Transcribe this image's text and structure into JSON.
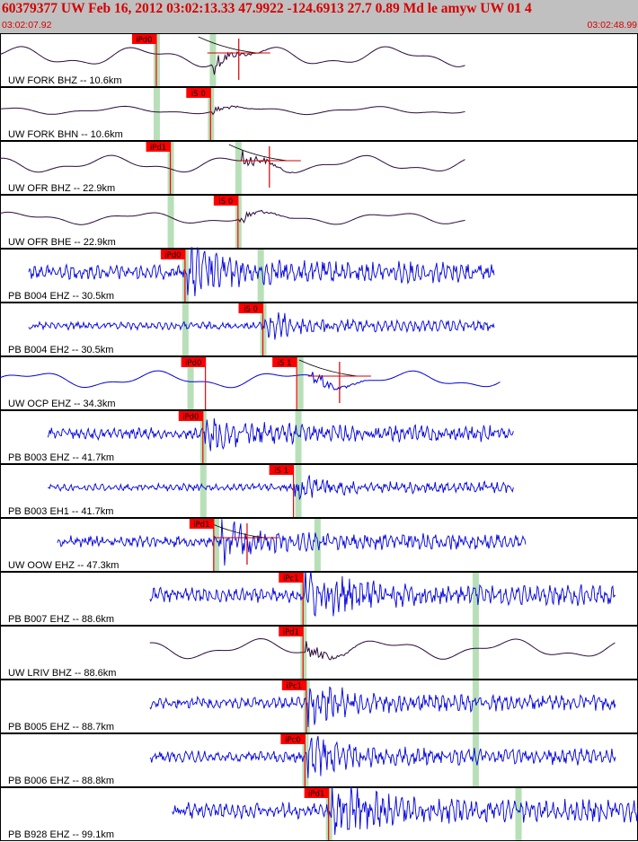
{
  "header": {
    "title": "60379377 UW Feb 16, 2012 03:02:13.33   47.9922 -124.6913 27.7 0.89 Md le amyw UW 01   4",
    "start_time": "03:02:07.92",
    "end_time": "03:02:48.99"
  },
  "colors": {
    "panel_border": "#000000",
    "phase_flag": "#ff0000",
    "pick_band": "#b8e0b8",
    "broadband_trace": "#2a0a3a",
    "shortperiod_trace": "#0000dd",
    "fit_line": "#d00000"
  },
  "traces": [
    {
      "label": "UW FORK BHZ -- 10.6km",
      "color": "#2a0a3a",
      "kind": "lp",
      "phases": [
        {
          "name": "iPd0",
          "t": 0.245
        }
      ],
      "bands": [
        0.245,
        0.333
      ],
      "start": 0.0,
      "end": 0.73,
      "burst": 0.332,
      "fit": true,
      "amp": 0.35
    },
    {
      "label": "UW FORK BHN -- 10.6km",
      "color": "#2a0a3a",
      "kind": "lp",
      "phases": [
        {
          "name": "iS 0",
          "t": 0.33
        }
      ],
      "bands": [
        0.245,
        0.33
      ],
      "start": 0.0,
      "end": 0.73,
      "burst": 0.33,
      "fit": false,
      "amp": 0.14
    },
    {
      "label": "UW OFR BHZ -- 22.9km",
      "color": "#2a0a3a",
      "kind": "lp",
      "phases": [
        {
          "name": "iPd1",
          "t": 0.267
        }
      ],
      "bands": [
        0.267,
        0.373
      ],
      "start": 0.0,
      "end": 0.73,
      "burst": 0.38,
      "fit": true,
      "amp": 0.3
    },
    {
      "label": "UW OFR BHE -- 22.9km",
      "color": "#2a0a3a",
      "kind": "lp",
      "phases": [
        {
          "name": "iS 0",
          "t": 0.373
        }
      ],
      "bands": [
        0.267,
        0.373
      ],
      "start": 0.0,
      "end": 0.73,
      "burst": 0.374,
      "fit": false,
      "amp": 0.22
    },
    {
      "label": "PB B004 EHZ -- 30.5km",
      "color": "#0000dd",
      "kind": "hf",
      "phases": [
        {
          "name": "iPd0",
          "t": 0.29
        }
      ],
      "bands": [
        0.29,
        0.408
      ],
      "start": 0.045,
      "end": 0.775,
      "burst": 0.293,
      "fit": false,
      "amp": 0.38
    },
    {
      "label": "PB B004 EH2 -- 30.5km",
      "color": "#0000dd",
      "kind": "hf",
      "phases": [
        {
          "name": "iS 0",
          "t": 0.412
        }
      ],
      "bands": [
        0.29,
        0.412
      ],
      "start": 0.045,
      "end": 0.775,
      "burst": 0.413,
      "fit": false,
      "amp": 0.2
    },
    {
      "label": "UW OCP EHZ -- 34.3km",
      "color": "#0000dd",
      "kind": "lp",
      "phases": [
        {
          "name": "iPd0",
          "t": 0.322
        },
        {
          "name": "iS 1",
          "t": 0.465
        }
      ],
      "bands": [
        0.298,
        0.47
      ],
      "start": 0.0,
      "end": 0.785,
      "burst": 0.49,
      "fit": true,
      "amp": 0.3
    },
    {
      "label": "PB B003 EHZ -- 41.7km",
      "color": "#0000dd",
      "kind": "hf",
      "phases": [
        {
          "name": "iPd0",
          "t": 0.318
        }
      ],
      "bands": [
        0.318,
        0.467
      ],
      "start": 0.075,
      "end": 0.805,
      "burst": 0.32,
      "fit": false,
      "amp": 0.3
    },
    {
      "label": "PB B003 EH1 -- 41.7km",
      "color": "#0000dd",
      "kind": "hf",
      "phases": [
        {
          "name": "iS 1",
          "t": 0.46
        }
      ],
      "bands": [
        0.318,
        0.467
      ],
      "start": 0.075,
      "end": 0.805,
      "burst": 0.46,
      "fit": false,
      "amp": 0.2
    },
    {
      "label": "UW OOW EHZ -- 47.3km",
      "color": "#0000dd",
      "kind": "hf",
      "phases": [
        {
          "name": "iPd1",
          "t": 0.335
        }
      ],
      "bands": [
        0.338,
        0.497
      ],
      "start": 0.09,
      "end": 0.825,
      "burst": 0.345,
      "fit": true,
      "amp": 0.3
    },
    {
      "label": "PB B007 EHZ -- 88.6km",
      "color": "#0000dd",
      "kind": "hf",
      "phases": [
        {
          "name": "iPc1",
          "t": 0.475
        }
      ],
      "bands": [
        0.475,
        0.745
      ],
      "start": 0.235,
      "end": 0.965,
      "burst": 0.478,
      "fit": false,
      "amp": 0.38
    },
    {
      "label": "UW LRIV BHZ -- 88.6km",
      "color": "#2a0a3a",
      "kind": "lp",
      "phases": [
        {
          "name": "iPd1",
          "t": 0.475
        }
      ],
      "bands": [
        0.475,
        0.745
      ],
      "start": 0.235,
      "end": 0.965,
      "burst": 0.478,
      "fit": false,
      "amp": 0.35
    },
    {
      "label": "PB B005 EHZ -- 88.7km",
      "color": "#0000dd",
      "kind": "hf",
      "phases": [
        {
          "name": "iPc1",
          "t": 0.48
        }
      ],
      "bands": [
        0.48,
        0.745
      ],
      "start": 0.235,
      "end": 0.965,
      "burst": 0.482,
      "fit": false,
      "amp": 0.3
    },
    {
      "label": "PB B006 EHZ -- 88.8km",
      "color": "#0000dd",
      "kind": "hf",
      "phases": [
        {
          "name": "iPc0",
          "t": 0.478
        }
      ],
      "bands": [
        0.478,
        0.745
      ],
      "start": 0.235,
      "end": 0.965,
      "burst": 0.48,
      "fit": false,
      "amp": 0.3
    },
    {
      "label": "PB B928 EHZ -- 99.1km",
      "color": "#0000dd",
      "kind": "hf",
      "phases": [
        {
          "name": "iPd1",
          "t": 0.515
        }
      ],
      "bands": [
        0.515,
        0.812
      ],
      "start": 0.27,
      "end": 1.0,
      "burst": 0.518,
      "fit": false,
      "amp": 0.42
    }
  ]
}
